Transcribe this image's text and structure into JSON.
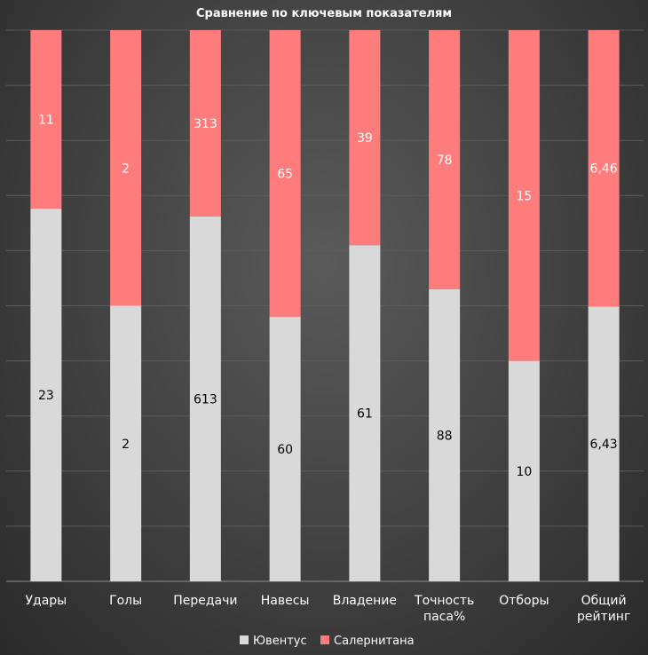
{
  "chart_data": {
    "type": "bar",
    "stacked": "percent",
    "title": "Сравнение по ключевым показателям",
    "categories": [
      [
        "Удары"
      ],
      [
        "Голы"
      ],
      [
        "Передачи"
      ],
      [
        "Навесы"
      ],
      [
        "Владение"
      ],
      [
        "Точность",
        "паса%"
      ],
      [
        "Отборы"
      ],
      [
        "Общий",
        "рейтинг"
      ]
    ],
    "series": [
      {
        "name": "Ювентус",
        "color": "#d9d9d9",
        "values": [
          23,
          2,
          613,
          60,
          61,
          88,
          10,
          6.43
        ],
        "labels": [
          "23",
          "2",
          "613",
          "60",
          "61",
          "88",
          "10",
          "6,43"
        ]
      },
      {
        "name": "Салернитана",
        "color": "#ff7c7c",
        "values": [
          11,
          2,
          313,
          65,
          39,
          78,
          15,
          6.46
        ],
        "labels": [
          "11",
          "2",
          "313",
          "65",
          "39",
          "78",
          "15",
          "6,46"
        ]
      }
    ],
    "ylim": [
      0,
      100
    ],
    "grid": true,
    "legend": "bottom"
  }
}
